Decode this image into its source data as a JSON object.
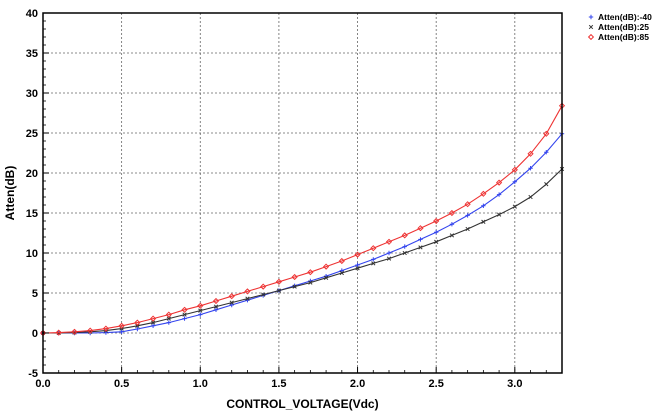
{
  "chart_data": {
    "type": "line",
    "title": "",
    "xlabel": "CONTROL_VOLTAGE(Vdc)",
    "ylabel": "Atten(dB)",
    "xlim": [
      0.0,
      3.3
    ],
    "ylim": [
      -5,
      40
    ],
    "x_ticks": [
      "0.0",
      "0.5",
      "1.0",
      "1.5",
      "2.0",
      "2.5",
      "3.0"
    ],
    "y_ticks": [
      "-5",
      "0",
      "5",
      "10",
      "15",
      "20",
      "25",
      "30",
      "35",
      "40"
    ],
    "grid": true,
    "legend_position": "top-right",
    "series": [
      {
        "name": "Atten(dB):-40",
        "color": "#3344ee",
        "marker": "plus",
        "x": [
          0.0,
          0.1,
          0.2,
          0.3,
          0.4,
          0.5,
          0.6,
          0.7,
          0.8,
          0.9,
          1.0,
          1.1,
          1.2,
          1.3,
          1.4,
          1.5,
          1.6,
          1.7,
          1.8,
          1.9,
          2.0,
          2.1,
          2.2,
          2.3,
          2.4,
          2.5,
          2.6,
          2.7,
          2.8,
          2.9,
          3.0,
          3.1,
          3.2,
          3.3
        ],
        "y": [
          0.0,
          0.0,
          0.0,
          0.0,
          0.05,
          0.15,
          0.5,
          0.9,
          1.3,
          1.8,
          2.3,
          2.9,
          3.5,
          4.1,
          4.7,
          5.3,
          5.9,
          6.5,
          7.1,
          7.8,
          8.5,
          9.2,
          10.0,
          10.8,
          11.7,
          12.6,
          13.6,
          14.7,
          15.9,
          17.3,
          18.9,
          20.6,
          22.6,
          24.9
        ]
      },
      {
        "name": "Atten(dB):25",
        "color": "#333333",
        "marker": "x",
        "x": [
          0.0,
          0.1,
          0.2,
          0.3,
          0.4,
          0.5,
          0.6,
          0.7,
          0.8,
          0.9,
          1.0,
          1.1,
          1.2,
          1.3,
          1.4,
          1.5,
          1.6,
          1.7,
          1.8,
          1.9,
          2.0,
          2.1,
          2.2,
          2.3,
          2.4,
          2.5,
          2.6,
          2.7,
          2.8,
          2.9,
          3.0,
          3.1,
          3.2,
          3.3
        ],
        "y": [
          0.0,
          0.0,
          0.05,
          0.15,
          0.3,
          0.55,
          0.9,
          1.3,
          1.8,
          2.3,
          2.8,
          3.3,
          3.8,
          4.3,
          4.8,
          5.3,
          5.8,
          6.3,
          6.9,
          7.5,
          8.1,
          8.7,
          9.3,
          10.0,
          10.7,
          11.4,
          12.2,
          13.0,
          13.9,
          14.8,
          15.8,
          17.0,
          18.6,
          20.5
        ]
      },
      {
        "name": "Atten(dB):85",
        "color": "#ee3333",
        "marker": "diamond",
        "x": [
          0.0,
          0.1,
          0.2,
          0.3,
          0.4,
          0.5,
          0.6,
          0.7,
          0.8,
          0.9,
          1.0,
          1.1,
          1.2,
          1.3,
          1.4,
          1.5,
          1.6,
          1.7,
          1.8,
          1.9,
          2.0,
          2.1,
          2.2,
          2.3,
          2.4,
          2.5,
          2.6,
          2.7,
          2.8,
          2.9,
          3.0,
          3.1,
          3.2,
          3.3
        ],
        "y": [
          0.0,
          0.05,
          0.15,
          0.3,
          0.55,
          0.9,
          1.3,
          1.8,
          2.3,
          2.9,
          3.4,
          4.0,
          4.6,
          5.2,
          5.8,
          6.4,
          7.0,
          7.6,
          8.3,
          9.0,
          9.8,
          10.6,
          11.4,
          12.2,
          13.1,
          14.0,
          15.0,
          16.1,
          17.4,
          18.8,
          20.4,
          22.4,
          24.9,
          28.4
        ]
      }
    ]
  }
}
